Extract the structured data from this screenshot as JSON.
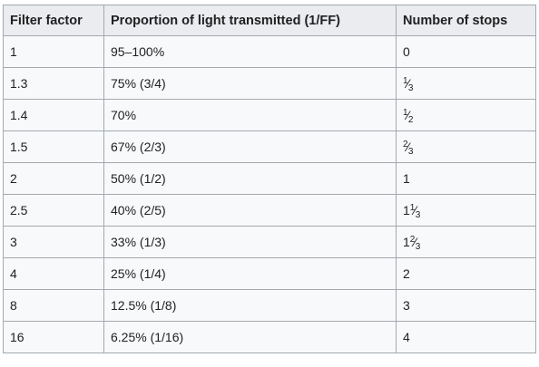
{
  "table": {
    "headers": [
      "Filter factor",
      "Proportion of light transmitted (1/FF)",
      "Number of stops"
    ],
    "rows": [
      {
        "factor": "1",
        "proportion": "95–100%",
        "stops_whole": "0",
        "stops_num": "",
        "stops_den": ""
      },
      {
        "factor": "1.3",
        "proportion": "75% (3/4)",
        "stops_whole": "",
        "stops_num": "1",
        "stops_den": "3"
      },
      {
        "factor": "1.4",
        "proportion": "70%",
        "stops_whole": "",
        "stops_num": "1",
        "stops_den": "2"
      },
      {
        "factor": "1.5",
        "proportion": "67% (2/3)",
        "stops_whole": "",
        "stops_num": "2",
        "stops_den": "3"
      },
      {
        "factor": "2",
        "proportion": "50% (1/2)",
        "stops_whole": "1",
        "stops_num": "",
        "stops_den": ""
      },
      {
        "factor": "2.5",
        "proportion": "40% (2/5)",
        "stops_whole": "1",
        "stops_num": "1",
        "stops_den": "3"
      },
      {
        "factor": "3",
        "proportion": "33% (1/3)",
        "stops_whole": "1",
        "stops_num": "2",
        "stops_den": "3"
      },
      {
        "factor": "4",
        "proportion": "25% (1/4)",
        "stops_whole": "2",
        "stops_num": "",
        "stops_den": ""
      },
      {
        "factor": "8",
        "proportion": "12.5% (1/8)",
        "stops_whole": "3",
        "stops_num": "",
        "stops_den": ""
      },
      {
        "factor": "16",
        "proportion": "6.25% (1/16)",
        "stops_whole": "4",
        "stops_num": "",
        "stops_den": ""
      }
    ]
  }
}
